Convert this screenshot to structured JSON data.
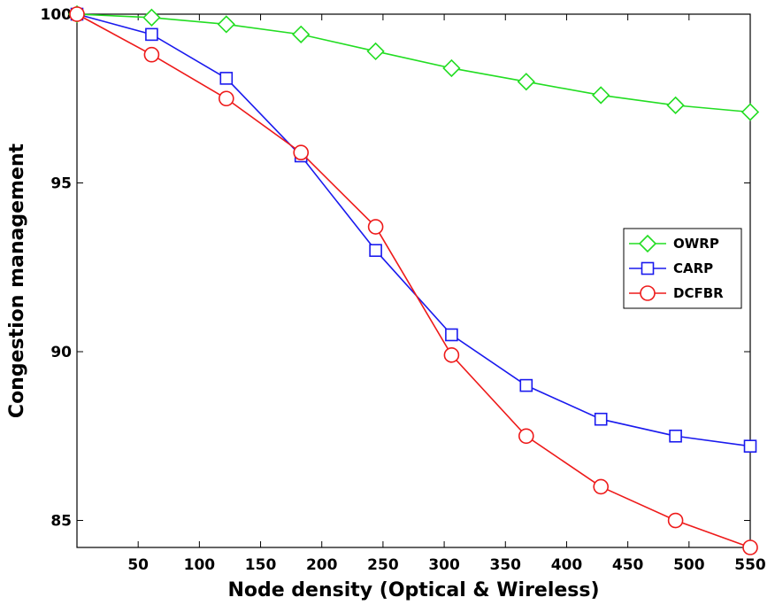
{
  "chart_data": {
    "type": "line",
    "title": "",
    "xlabel": "Node density (Optical & Wireless)",
    "ylabel": "Congestion management",
    "xlim": [
      0,
      550
    ],
    "ylim": [
      84.2,
      100
    ],
    "xticks": [
      50,
      100,
      150,
      200,
      250,
      300,
      350,
      400,
      450,
      500,
      550
    ],
    "yticks": [
      85,
      90,
      95,
      100
    ],
    "xtick_labels": [
      "50",
      "100",
      "150",
      "200",
      "250",
      "300",
      "350",
      "400",
      "450",
      "500",
      "550"
    ],
    "ytick_labels": [
      "85",
      "90",
      "95",
      "100"
    ],
    "x": [
      0,
      61,
      122,
      183,
      244,
      306,
      367,
      428,
      489,
      550
    ],
    "series": [
      {
        "name": "OWRP",
        "color": "#22dd22",
        "marker": "diamond",
        "values": [
          100,
          99.9,
          99.7,
          99.4,
          98.9,
          98.4,
          98.0,
          97.6,
          97.3,
          97.1
        ]
      },
      {
        "name": "CARP",
        "color": "#1a1aee",
        "marker": "square",
        "values": [
          100,
          99.4,
          98.1,
          95.8,
          93.0,
          90.5,
          89.0,
          88.0,
          87.5,
          87.2
        ]
      },
      {
        "name": "DCFBR",
        "color": "#ee1a1a",
        "marker": "circle",
        "values": [
          100,
          98.8,
          97.5,
          95.9,
          93.7,
          89.9,
          87.5,
          86.0,
          85.0,
          84.2
        ]
      }
    ],
    "legend_position": "right",
    "grid": false
  }
}
